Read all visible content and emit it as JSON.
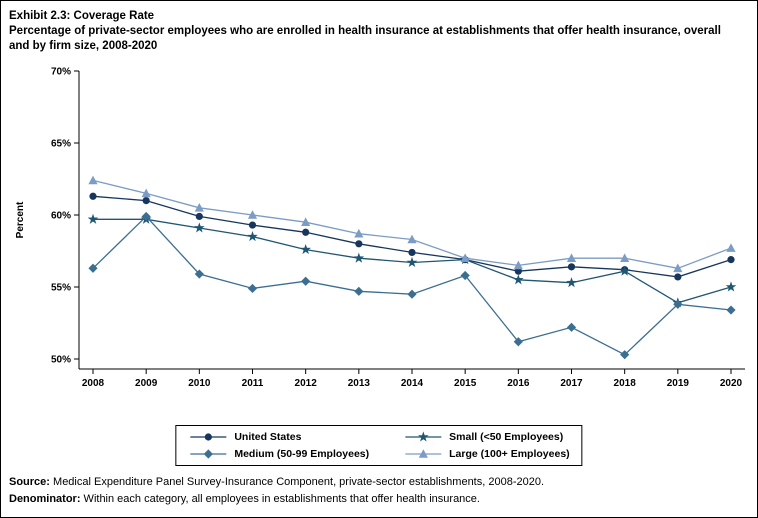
{
  "header": {
    "title_line1": "Exhibit 2.3: Coverage Rate",
    "title_line2": "Percentage of private-sector employees who are enrolled in health insurance at establishments that offer health insurance, overall and by firm size, 2008-2020"
  },
  "chart_data": {
    "type": "line",
    "x": [
      2008,
      2009,
      2010,
      2011,
      2012,
      2013,
      2014,
      2015,
      2016,
      2017,
      2018,
      2019,
      2020
    ],
    "series": [
      {
        "name": "United States",
        "marker": "circle",
        "color": "#17365d",
        "values": [
          61.3,
          61.0,
          59.9,
          59.3,
          58.8,
          58.0,
          57.4,
          56.9,
          56.1,
          56.4,
          56.2,
          55.7,
          56.9
        ]
      },
      {
        "name": "Small (<50 Employees)",
        "marker": "star",
        "color": "#1f5673",
        "values": [
          59.7,
          59.7,
          59.1,
          58.5,
          57.6,
          57.0,
          56.7,
          56.9,
          55.5,
          55.3,
          56.1,
          53.9,
          55.0
        ]
      },
      {
        "name": "Medium (50-99 Employees)",
        "marker": "diamond",
        "color": "#3c6e91",
        "values": [
          56.3,
          59.9,
          55.9,
          54.9,
          55.4,
          54.7,
          54.5,
          55.8,
          51.2,
          52.2,
          50.3,
          53.8,
          53.4
        ]
      },
      {
        "name": "Large (100+ Employees)",
        "marker": "triangle",
        "color": "#7b9cc4",
        "values": [
          62.4,
          61.5,
          60.5,
          60.0,
          59.5,
          58.7,
          58.3,
          57.0,
          56.5,
          57.0,
          57.0,
          56.3,
          57.7
        ]
      }
    ],
    "title": "",
    "xlabel": "",
    "ylabel": "Percent",
    "ylim": [
      50,
      70
    ],
    "yticks": [
      50,
      55,
      60,
      65,
      70
    ],
    "ytick_labels": [
      "50%",
      "55%",
      "60%",
      "65%",
      "70%"
    ],
    "xtick_labels": [
      "2008",
      "2009",
      "2010",
      "2011",
      "2012",
      "2013",
      "2014",
      "2015",
      "2016",
      "2017",
      "2018",
      "2019",
      "2020"
    ],
    "grid": false,
    "legend_position": "bottom",
    "legend_order": [
      "United States",
      "Small (<50 Employees)",
      "Medium (50-99 Employees)",
      "Large (100+ Employees)"
    ]
  },
  "footer": {
    "source_label": "Source:",
    "source_text": " Medical Expenditure Panel Survey-Insurance Component, private-sector establishments, 2008-2020.",
    "denominator_label": "Denominator:",
    "denominator_text": " Within each category, all employees in establishments that offer health insurance."
  }
}
